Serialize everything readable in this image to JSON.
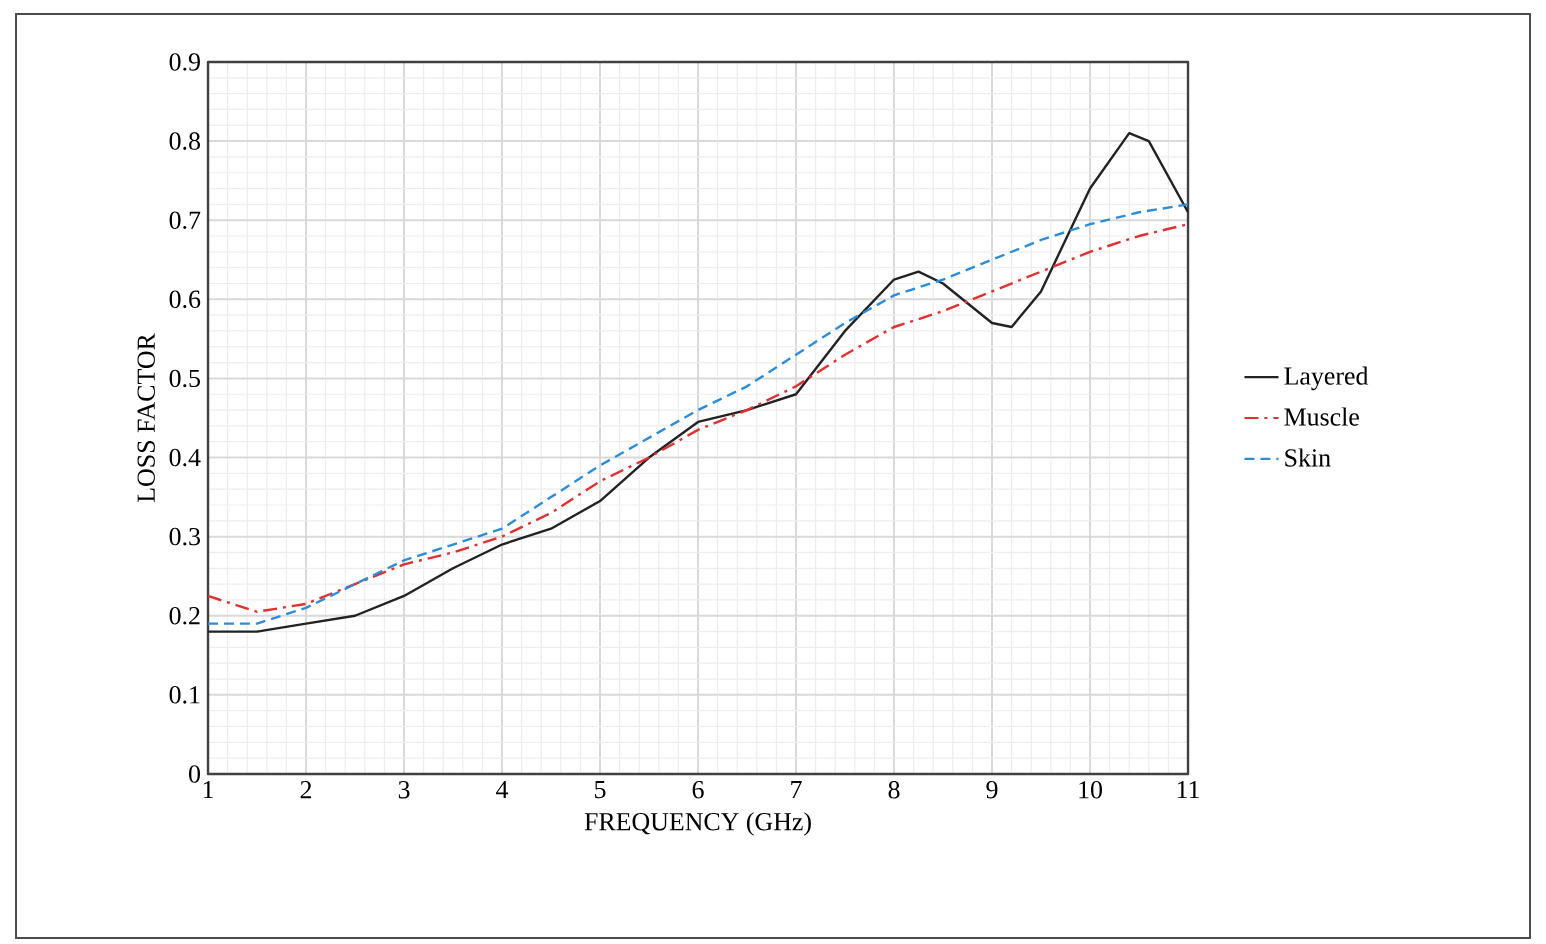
{
  "chart_data": {
    "type": "line",
    "xlabel": "FREQUENCY (GHz)",
    "ylabel": "LOSS FACTOR",
    "xlim": [
      1,
      11
    ],
    "xticks": [
      1,
      2,
      3,
      4,
      5,
      6,
      7,
      8,
      9,
      10,
      11
    ],
    "ylim": [
      0,
      0.9
    ],
    "yticks": [
      0,
      0.1,
      0.2,
      0.3,
      0.4,
      0.5,
      0.6,
      0.7,
      0.8,
      0.9
    ],
    "grid": true,
    "legend": "right",
    "marker": "none",
    "series": [
      {
        "name": "Layered",
        "color": "#222222",
        "line_style": "solid",
        "x": [
          1,
          1.5,
          2,
          2.5,
          3,
          3.5,
          4,
          4.5,
          5,
          5.5,
          6,
          6.5,
          7,
          7.5,
          8,
          8.25,
          8.5,
          9,
          9.2,
          9.5,
          10,
          10.4,
          10.6,
          11
        ],
        "values": [
          0.18,
          0.18,
          0.19,
          0.2,
          0.225,
          0.26,
          0.29,
          0.31,
          0.345,
          0.4,
          0.445,
          0.46,
          0.48,
          0.56,
          0.625,
          0.635,
          0.62,
          0.57,
          0.565,
          0.61,
          0.74,
          0.81,
          0.8,
          0.71
        ]
      },
      {
        "name": "Muscle",
        "color": "#e03030",
        "line_style": "dashdot",
        "x": [
          1,
          1.5,
          2,
          2.5,
          3,
          3.5,
          4,
          4.5,
          5,
          5.5,
          6,
          6.5,
          7,
          7.5,
          8,
          8.5,
          9,
          9.5,
          10,
          10.5,
          11
        ],
        "values": [
          0.225,
          0.205,
          0.215,
          0.24,
          0.265,
          0.28,
          0.3,
          0.33,
          0.37,
          0.4,
          0.435,
          0.46,
          0.49,
          0.53,
          0.565,
          0.585,
          0.61,
          0.635,
          0.66,
          0.68,
          0.695
        ]
      },
      {
        "name": "Skin",
        "color": "#2e8bd8",
        "line_style": "dashed",
        "x": [
          1,
          1.5,
          2,
          2.5,
          3,
          3.5,
          4,
          4.5,
          5,
          5.5,
          6,
          6.5,
          7,
          7.5,
          8,
          8.5,
          9,
          9.5,
          10,
          10.5,
          11
        ],
        "values": [
          0.19,
          0.19,
          0.21,
          0.24,
          0.27,
          0.29,
          0.31,
          0.35,
          0.39,
          0.425,
          0.46,
          0.49,
          0.53,
          0.57,
          0.605,
          0.625,
          0.65,
          0.675,
          0.695,
          0.71,
          0.72
        ]
      }
    ]
  }
}
